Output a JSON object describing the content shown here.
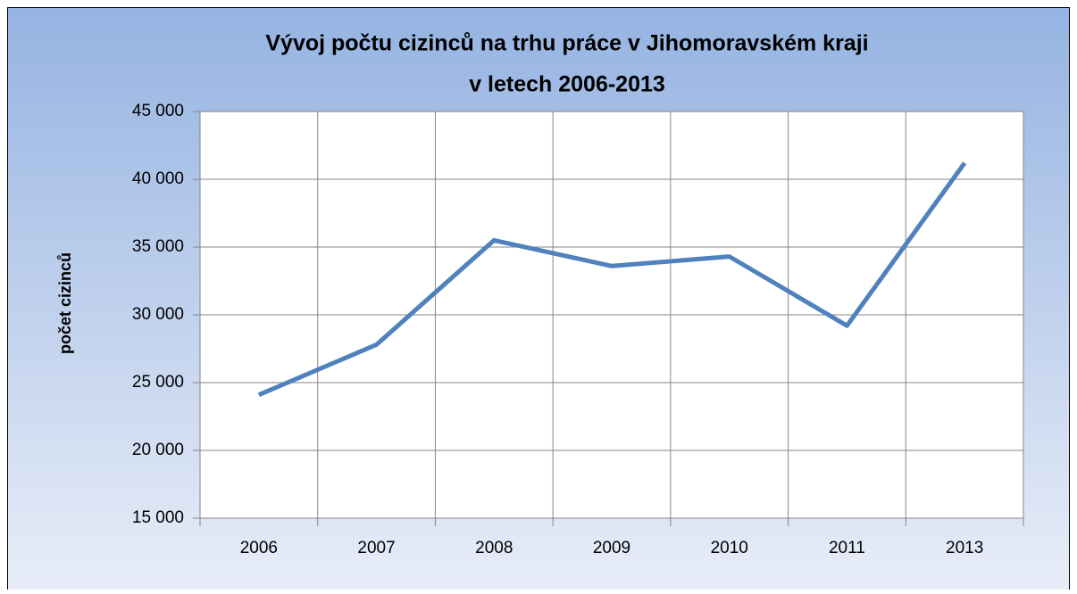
{
  "chart_data": {
    "type": "line",
    "title": [
      "Vývoj počtu cizinců na trhu práce v Jihomoravském kraji",
      "v letech 2006-2013"
    ],
    "y_label": "počet cizinců",
    "categories": [
      "2006",
      "2007",
      "2008",
      "2009",
      "2010",
      "2011",
      "2013"
    ],
    "series": [
      {
        "name": "počet cizinců",
        "color": "#4f81bd",
        "values": [
          24100,
          27800,
          35500,
          33600,
          34300,
          29200,
          41200
        ]
      }
    ],
    "ylim": [
      15000,
      45000
    ],
    "yticks": [
      {
        "value": 15000,
        "label": "15 000"
      },
      {
        "value": 20000,
        "label": "20 000"
      },
      {
        "value": 25000,
        "label": "25 000"
      },
      {
        "value": 30000,
        "label": "30 000"
      },
      {
        "value": 35000,
        "label": "35 000"
      },
      {
        "value": 40000,
        "label": "40 000"
      },
      {
        "value": 45000,
        "label": "45 000"
      }
    ],
    "grid": true,
    "legend": false
  }
}
